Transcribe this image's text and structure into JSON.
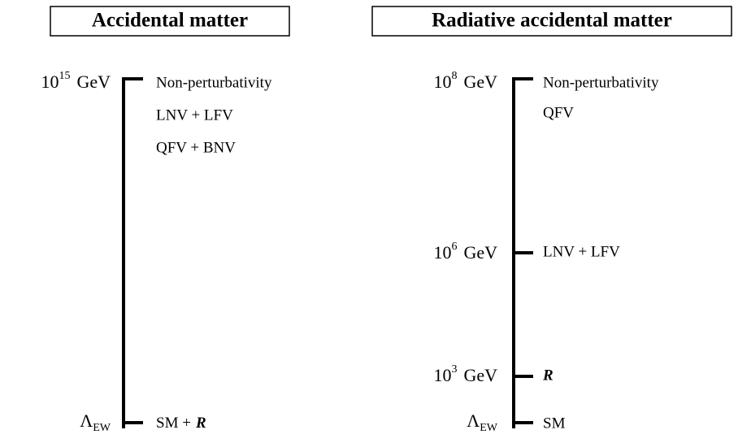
{
  "panels": [
    {
      "title": "Accidental matter",
      "scales": [
        {
          "base": "10",
          "exponent": "15",
          "unit": "GeV",
          "labels": [
            "Non-perturbativity",
            "LNV + LFV",
            "QFV + BNV"
          ]
        },
        {
          "base": "Λ",
          "subscript": "EW",
          "labels": [
            "SM +"
          ],
          "symbol": "R"
        }
      ]
    },
    {
      "title": "Radiative accidental matter",
      "scales": [
        {
          "base": "10",
          "exponent": "8",
          "unit": "GeV",
          "labels": [
            "Non-perturbativity",
            "QFV"
          ]
        },
        {
          "base": "10",
          "exponent": "6",
          "unit": "GeV",
          "labels": [
            "LNV + LFV"
          ]
        },
        {
          "base": "10",
          "exponent": "3",
          "unit": "GeV",
          "symbol": "R"
        },
        {
          "base": "Λ",
          "subscript": "EW",
          "labels": [
            "SM"
          ]
        }
      ]
    }
  ]
}
